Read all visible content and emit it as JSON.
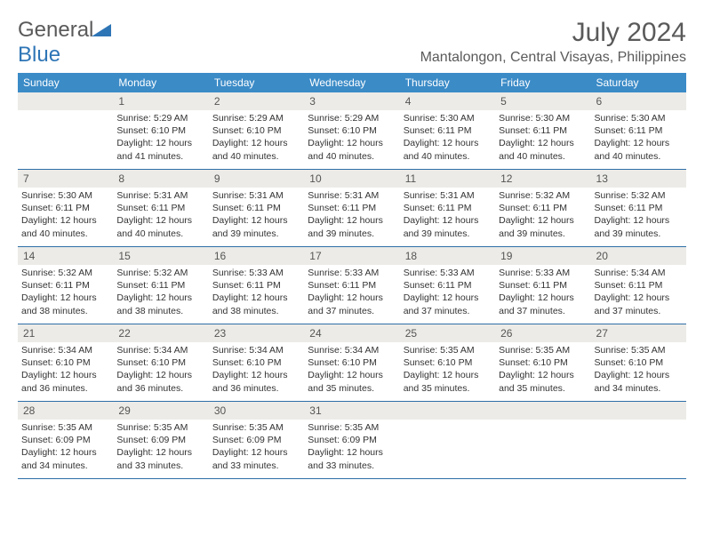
{
  "brand": {
    "part1": "General",
    "part2": "Blue"
  },
  "title": "July 2024",
  "location": "Mantalongon, Central Visayas, Philippines",
  "colors": {
    "header_bg": "#3b8bc7",
    "header_text": "#ffffff",
    "daynum_bg": "#ecebe7",
    "border": "#2e6fa8",
    "text": "#333333",
    "title_text": "#5a5a5a",
    "logo_blue": "#2e75b6"
  },
  "day_labels": [
    "Sunday",
    "Monday",
    "Tuesday",
    "Wednesday",
    "Thursday",
    "Friday",
    "Saturday"
  ],
  "weeks": [
    [
      {
        "n": "",
        "sr": "",
        "ss": "",
        "dl": ""
      },
      {
        "n": "1",
        "sr": "Sunrise: 5:29 AM",
        "ss": "Sunset: 6:10 PM",
        "dl": "Daylight: 12 hours and 41 minutes."
      },
      {
        "n": "2",
        "sr": "Sunrise: 5:29 AM",
        "ss": "Sunset: 6:10 PM",
        "dl": "Daylight: 12 hours and 40 minutes."
      },
      {
        "n": "3",
        "sr": "Sunrise: 5:29 AM",
        "ss": "Sunset: 6:10 PM",
        "dl": "Daylight: 12 hours and 40 minutes."
      },
      {
        "n": "4",
        "sr": "Sunrise: 5:30 AM",
        "ss": "Sunset: 6:11 PM",
        "dl": "Daylight: 12 hours and 40 minutes."
      },
      {
        "n": "5",
        "sr": "Sunrise: 5:30 AM",
        "ss": "Sunset: 6:11 PM",
        "dl": "Daylight: 12 hours and 40 minutes."
      },
      {
        "n": "6",
        "sr": "Sunrise: 5:30 AM",
        "ss": "Sunset: 6:11 PM",
        "dl": "Daylight: 12 hours and 40 minutes."
      }
    ],
    [
      {
        "n": "7",
        "sr": "Sunrise: 5:30 AM",
        "ss": "Sunset: 6:11 PM",
        "dl": "Daylight: 12 hours and 40 minutes."
      },
      {
        "n": "8",
        "sr": "Sunrise: 5:31 AM",
        "ss": "Sunset: 6:11 PM",
        "dl": "Daylight: 12 hours and 40 minutes."
      },
      {
        "n": "9",
        "sr": "Sunrise: 5:31 AM",
        "ss": "Sunset: 6:11 PM",
        "dl": "Daylight: 12 hours and 39 minutes."
      },
      {
        "n": "10",
        "sr": "Sunrise: 5:31 AM",
        "ss": "Sunset: 6:11 PM",
        "dl": "Daylight: 12 hours and 39 minutes."
      },
      {
        "n": "11",
        "sr": "Sunrise: 5:31 AM",
        "ss": "Sunset: 6:11 PM",
        "dl": "Daylight: 12 hours and 39 minutes."
      },
      {
        "n": "12",
        "sr": "Sunrise: 5:32 AM",
        "ss": "Sunset: 6:11 PM",
        "dl": "Daylight: 12 hours and 39 minutes."
      },
      {
        "n": "13",
        "sr": "Sunrise: 5:32 AM",
        "ss": "Sunset: 6:11 PM",
        "dl": "Daylight: 12 hours and 39 minutes."
      }
    ],
    [
      {
        "n": "14",
        "sr": "Sunrise: 5:32 AM",
        "ss": "Sunset: 6:11 PM",
        "dl": "Daylight: 12 hours and 38 minutes."
      },
      {
        "n": "15",
        "sr": "Sunrise: 5:32 AM",
        "ss": "Sunset: 6:11 PM",
        "dl": "Daylight: 12 hours and 38 minutes."
      },
      {
        "n": "16",
        "sr": "Sunrise: 5:33 AM",
        "ss": "Sunset: 6:11 PM",
        "dl": "Daylight: 12 hours and 38 minutes."
      },
      {
        "n": "17",
        "sr": "Sunrise: 5:33 AM",
        "ss": "Sunset: 6:11 PM",
        "dl": "Daylight: 12 hours and 37 minutes."
      },
      {
        "n": "18",
        "sr": "Sunrise: 5:33 AM",
        "ss": "Sunset: 6:11 PM",
        "dl": "Daylight: 12 hours and 37 minutes."
      },
      {
        "n": "19",
        "sr": "Sunrise: 5:33 AM",
        "ss": "Sunset: 6:11 PM",
        "dl": "Daylight: 12 hours and 37 minutes."
      },
      {
        "n": "20",
        "sr": "Sunrise: 5:34 AM",
        "ss": "Sunset: 6:11 PM",
        "dl": "Daylight: 12 hours and 37 minutes."
      }
    ],
    [
      {
        "n": "21",
        "sr": "Sunrise: 5:34 AM",
        "ss": "Sunset: 6:10 PM",
        "dl": "Daylight: 12 hours and 36 minutes."
      },
      {
        "n": "22",
        "sr": "Sunrise: 5:34 AM",
        "ss": "Sunset: 6:10 PM",
        "dl": "Daylight: 12 hours and 36 minutes."
      },
      {
        "n": "23",
        "sr": "Sunrise: 5:34 AM",
        "ss": "Sunset: 6:10 PM",
        "dl": "Daylight: 12 hours and 36 minutes."
      },
      {
        "n": "24",
        "sr": "Sunrise: 5:34 AM",
        "ss": "Sunset: 6:10 PM",
        "dl": "Daylight: 12 hours and 35 minutes."
      },
      {
        "n": "25",
        "sr": "Sunrise: 5:35 AM",
        "ss": "Sunset: 6:10 PM",
        "dl": "Daylight: 12 hours and 35 minutes."
      },
      {
        "n": "26",
        "sr": "Sunrise: 5:35 AM",
        "ss": "Sunset: 6:10 PM",
        "dl": "Daylight: 12 hours and 35 minutes."
      },
      {
        "n": "27",
        "sr": "Sunrise: 5:35 AM",
        "ss": "Sunset: 6:10 PM",
        "dl": "Daylight: 12 hours and 34 minutes."
      }
    ],
    [
      {
        "n": "28",
        "sr": "Sunrise: 5:35 AM",
        "ss": "Sunset: 6:09 PM",
        "dl": "Daylight: 12 hours and 34 minutes."
      },
      {
        "n": "29",
        "sr": "Sunrise: 5:35 AM",
        "ss": "Sunset: 6:09 PM",
        "dl": "Daylight: 12 hours and 33 minutes."
      },
      {
        "n": "30",
        "sr": "Sunrise: 5:35 AM",
        "ss": "Sunset: 6:09 PM",
        "dl": "Daylight: 12 hours and 33 minutes."
      },
      {
        "n": "31",
        "sr": "Sunrise: 5:35 AM",
        "ss": "Sunset: 6:09 PM",
        "dl": "Daylight: 12 hours and 33 minutes."
      },
      {
        "n": "",
        "sr": "",
        "ss": "",
        "dl": ""
      },
      {
        "n": "",
        "sr": "",
        "ss": "",
        "dl": ""
      },
      {
        "n": "",
        "sr": "",
        "ss": "",
        "dl": ""
      }
    ]
  ]
}
